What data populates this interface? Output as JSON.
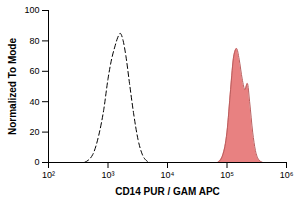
{
  "chart_data": {
    "type": "line",
    "x_label": "CD14 PUR / GAM APC",
    "y_label": "Normalized To Mode",
    "log": "x",
    "xlim": [
      100,
      1000000
    ],
    "xticks": [
      {
        "value": 100,
        "label": "10²"
      },
      {
        "value": 1000,
        "label": "10³"
      },
      {
        "value": 10000,
        "label": "10⁴"
      },
      {
        "value": 100000,
        "label": "10⁵"
      },
      {
        "value": 1000000,
        "label": "10⁶"
      }
    ],
    "ylim": [
      0,
      100
    ],
    "yticks": [
      0,
      20,
      40,
      60,
      80,
      100
    ],
    "series": [
      {
        "type": "line",
        "line_style": "dashed",
        "color": "#000000",
        "x": [
          400,
          550,
          700,
          850,
          1000,
          1150,
          1300,
          1450,
          1600,
          1800,
          2000,
          2300,
          2700,
          3200,
          3800,
          4500,
          5200
        ],
        "values": [
          0,
          5,
          18,
          35,
          55,
          68,
          76,
          82,
          85,
          80,
          70,
          52,
          32,
          15,
          5,
          1,
          0
        ]
      },
      {
        "type": "area",
        "color": "#e57373",
        "x": [
          70000,
          85000,
          100000,
          115000,
          130000,
          145000,
          160000,
          180000,
          200000,
          220000,
          240000,
          270000,
          300000,
          340000,
          400000
        ],
        "values": [
          0,
          5,
          20,
          48,
          70,
          75,
          68,
          55,
          48,
          52,
          40,
          20,
          8,
          2,
          0
        ]
      }
    ]
  }
}
